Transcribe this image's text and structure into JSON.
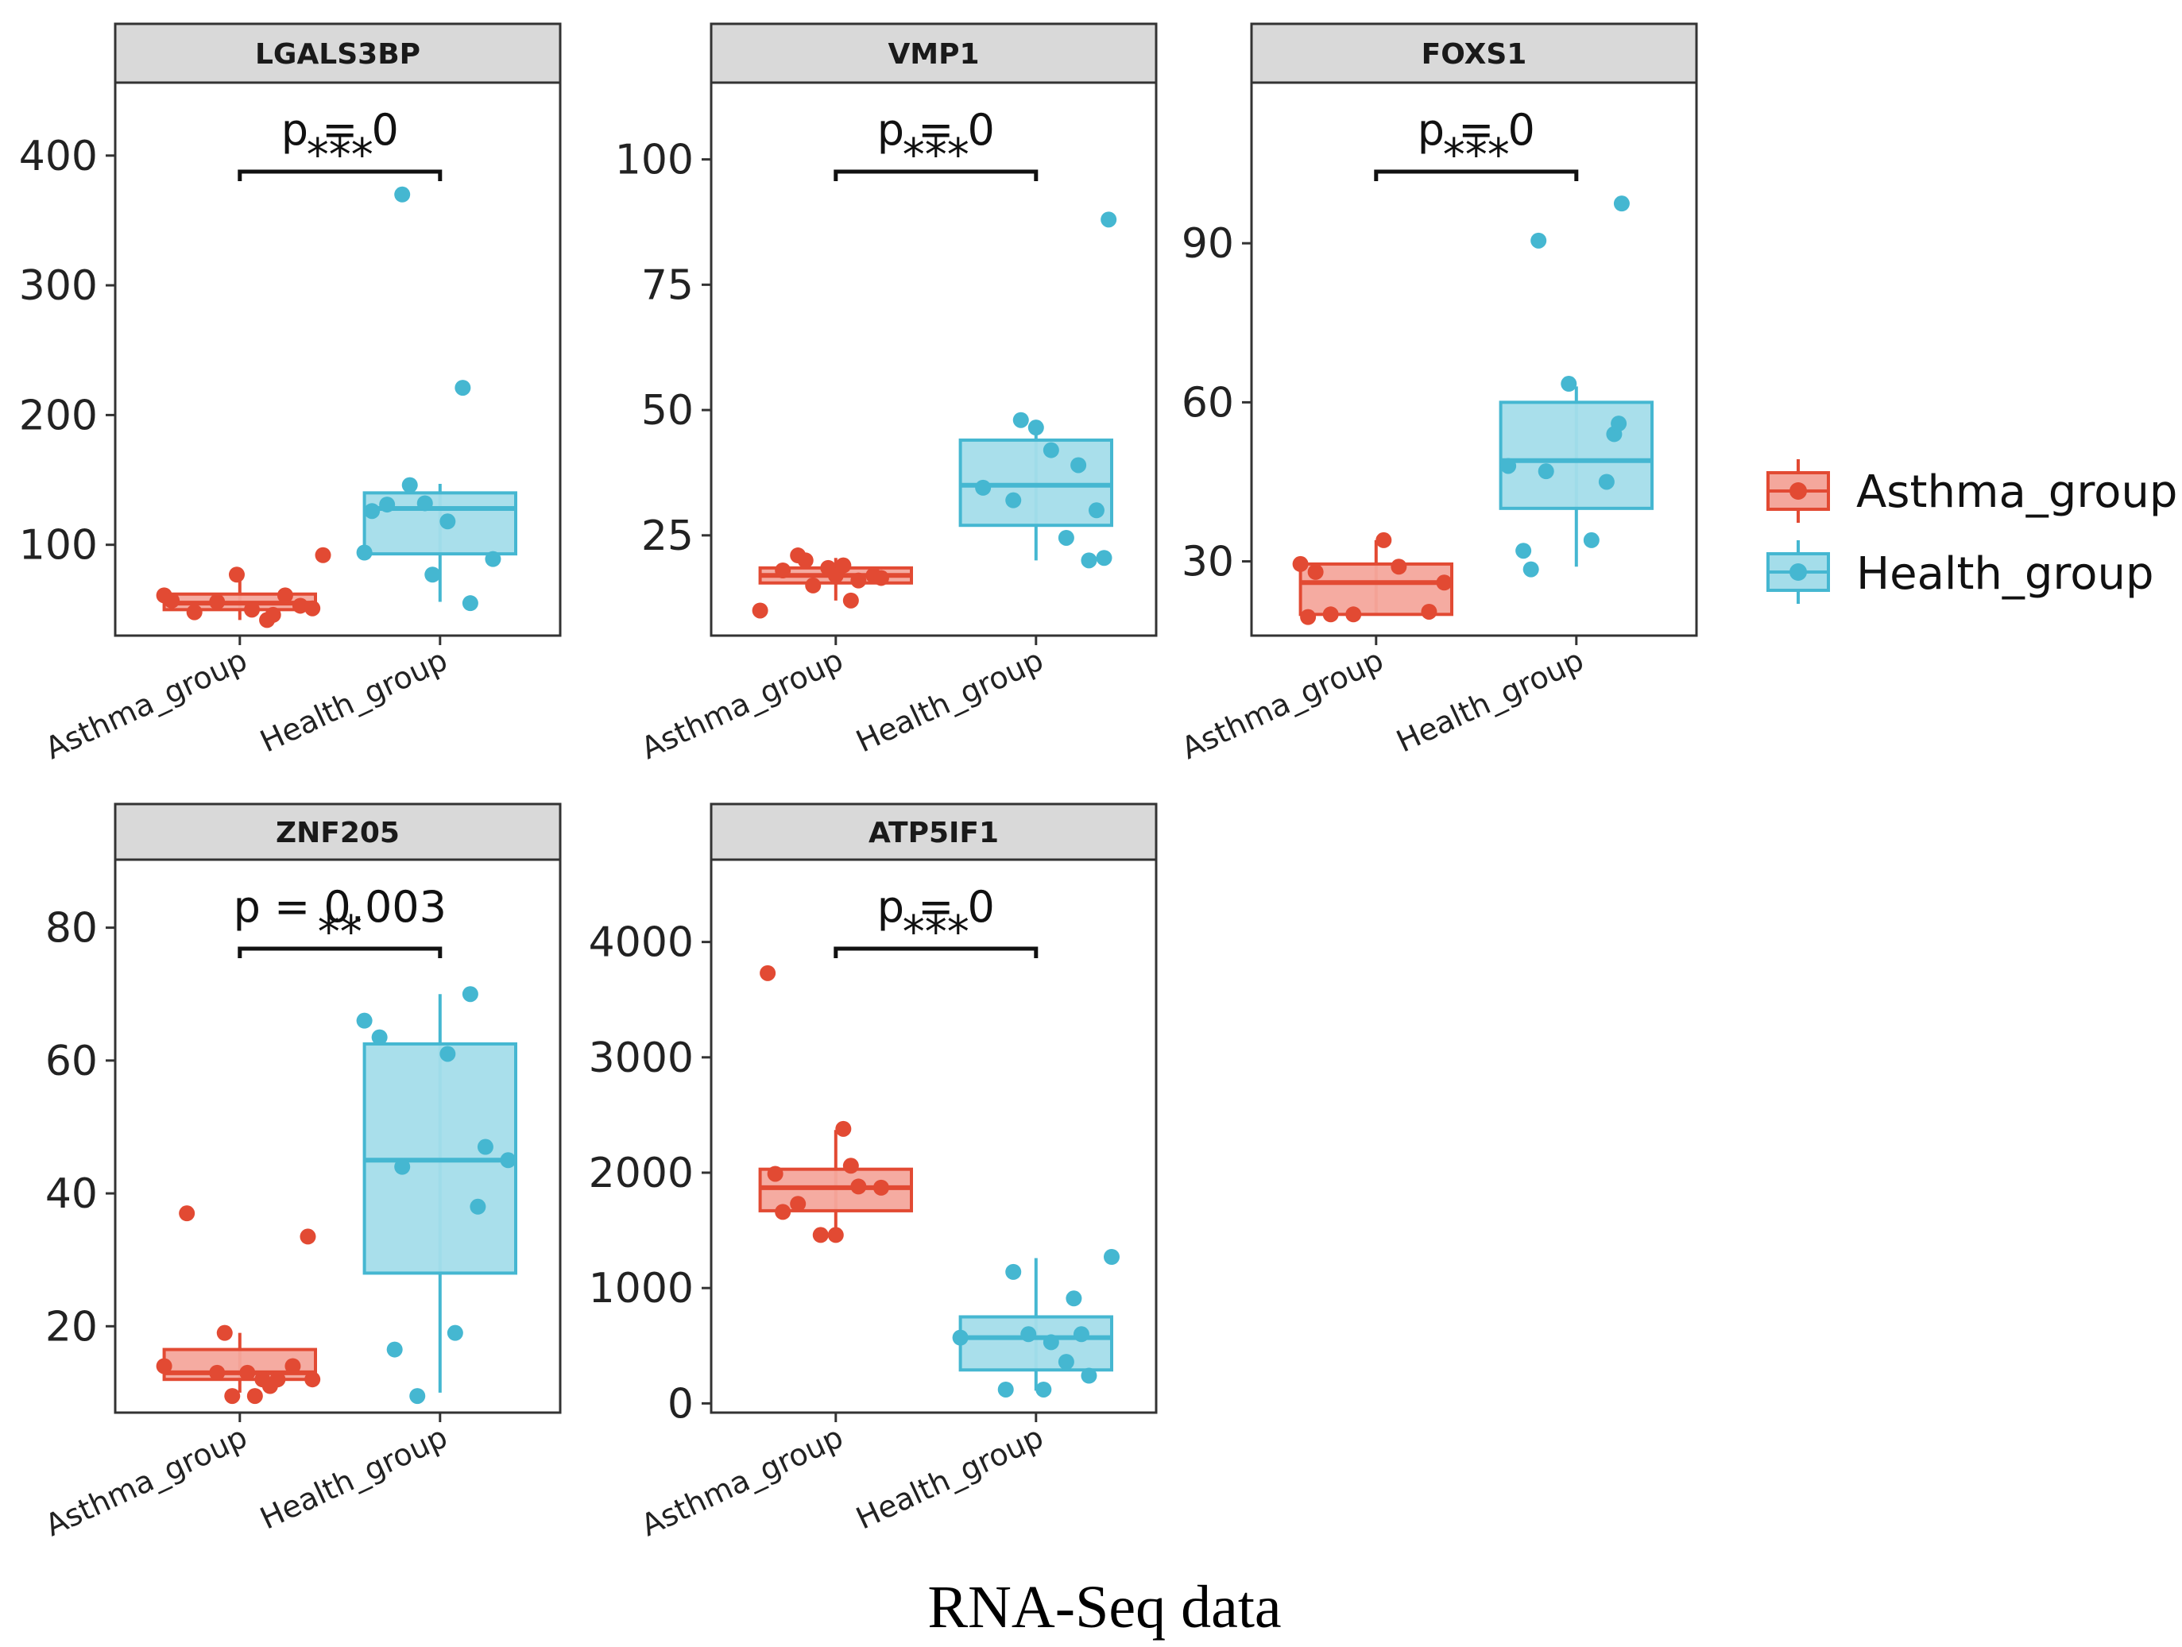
{
  "chart_data": {
    "type": "box",
    "caption": "RNA-Seq data",
    "colors": {
      "Asthma_group": {
        "stroke": "#E24A33",
        "fill": "#F4A79C"
      },
      "Health_group": {
        "stroke": "#45B7D1",
        "fill": "#A4DDEA"
      }
    },
    "legend": {
      "position": "right",
      "entries": [
        "Asthma_group",
        "Health_group"
      ]
    },
    "panels": [
      {
        "title": "LGALS3BP",
        "p_label": "p = 0",
        "stars": "***",
        "ylim": [
          30,
          455
        ],
        "yticks": [
          100,
          200,
          300,
          400
        ],
        "categories": [
          "Asthma_group",
          "Health_group"
        ],
        "groups": [
          {
            "name": "Asthma_group",
            "q1": 50,
            "median": 55,
            "q3": 62,
            "whisker_low": 42,
            "whisker_high": 78,
            "points": [
              [
                -0.5,
                61
              ],
              [
                -0.45,
                57
              ],
              [
                -0.3,
                48
              ],
              [
                -0.15,
                56
              ],
              [
                -0.02,
                77
              ],
              [
                0.08,
                50
              ],
              [
                0.18,
                42
              ],
              [
                0.22,
                46
              ],
              [
                0.3,
                61
              ],
              [
                0.4,
                53
              ],
              [
                0.48,
                51
              ],
              [
                0.55,
                92
              ]
            ]
          },
          {
            "name": "Health_group",
            "q1": 93,
            "median": 128,
            "q3": 140,
            "whisker_low": 56,
            "whisker_high": 147,
            "points": [
              [
                -0.5,
                94
              ],
              [
                -0.45,
                126
              ],
              [
                -0.35,
                131
              ],
              [
                -0.25,
                370
              ],
              [
                -0.2,
                146
              ],
              [
                -0.1,
                132
              ],
              [
                -0.05,
                77
              ],
              [
                0.05,
                118
              ],
              [
                0.15,
                221
              ],
              [
                0.2,
                55
              ],
              [
                0.35,
                89
              ]
            ]
          }
        ]
      },
      {
        "title": "VMP1",
        "p_label": "p = 0",
        "stars": "***",
        "ylim": [
          5,
          115
        ],
        "yticks": [
          25,
          50,
          75,
          100
        ],
        "categories": [
          "Asthma_group",
          "Health_group"
        ],
        "groups": [
          {
            "name": "Asthma_group",
            "q1": 15.5,
            "median": 17,
            "q3": 18.5,
            "whisker_low": 12,
            "whisker_high": 20.5,
            "points": [
              [
                -0.5,
                10
              ],
              [
                -0.35,
                18
              ],
              [
                -0.25,
                21
              ],
              [
                -0.2,
                20
              ],
              [
                -0.15,
                15
              ],
              [
                -0.05,
                18.5
              ],
              [
                0,
                17
              ],
              [
                0.05,
                19
              ],
              [
                0.1,
                12
              ],
              [
                0.15,
                16
              ],
              [
                0.25,
                17
              ],
              [
                0.3,
                16.5
              ]
            ]
          },
          {
            "name": "Health_group",
            "q1": 27,
            "median": 35,
            "q3": 44,
            "whisker_low": 20,
            "whisker_high": 48,
            "points": [
              [
                -0.35,
                34.5
              ],
              [
                -0.15,
                32
              ],
              [
                -0.1,
                48
              ],
              [
                0,
                46.5
              ],
              [
                0.1,
                42
              ],
              [
                0.2,
                24.5
              ],
              [
                0.28,
                39
              ],
              [
                0.35,
                20
              ],
              [
                0.4,
                30
              ],
              [
                0.45,
                20.5
              ],
              [
                0.48,
                88
              ]
            ]
          }
        ]
      },
      {
        "title": "FOXS1",
        "p_label": "p = 0",
        "stars": "***",
        "ylim": [
          16,
          120
        ],
        "yticks": [
          30,
          60,
          90
        ],
        "categories": [
          "Asthma_group",
          "Health_group"
        ],
        "groups": [
          {
            "name": "Asthma_group",
            "q1": 20,
            "median": 26,
            "q3": 29.5,
            "whisker_low": 20,
            "whisker_high": 34,
            "points": [
              [
                -0.5,
                29.5
              ],
              [
                -0.45,
                19.5
              ],
              [
                -0.4,
                28
              ],
              [
                -0.3,
                20
              ],
              [
                -0.15,
                20
              ],
              [
                0.05,
                34
              ],
              [
                0.15,
                29
              ],
              [
                0.35,
                20.5
              ],
              [
                0.45,
                26
              ]
            ]
          },
          {
            "name": "Health_group",
            "q1": 40,
            "median": 49,
            "q3": 60,
            "whisker_low": 29,
            "whisker_high": 63,
            "points": [
              [
                -0.45,
                48
              ],
              [
                -0.35,
                32
              ],
              [
                -0.3,
                28.5
              ],
              [
                -0.25,
                90.5
              ],
              [
                -0.2,
                47
              ],
              [
                -0.05,
                63.5
              ],
              [
                0.1,
                34
              ],
              [
                0.2,
                45
              ],
              [
                0.25,
                54
              ],
              [
                0.28,
                56
              ],
              [
                0.3,
                97.5
              ]
            ]
          }
        ]
      },
      {
        "title": "ZNF205",
        "p_label": "p = 0.003",
        "stars": "**",
        "ylim": [
          7,
          90
        ],
        "yticks": [
          20,
          40,
          60,
          80
        ],
        "categories": [
          "Asthma_group",
          "Health_group"
        ],
        "groups": [
          {
            "name": "Asthma_group",
            "q1": 12,
            "median": 13,
            "q3": 16.5,
            "whisker_low": 10,
            "whisker_high": 19,
            "points": [
              [
                -0.5,
                14
              ],
              [
                -0.35,
                37
              ],
              [
                -0.15,
                13
              ],
              [
                -0.1,
                19
              ],
              [
                -0.05,
                9.5
              ],
              [
                0.05,
                13
              ],
              [
                0.1,
                9.5
              ],
              [
                0.15,
                12
              ],
              [
                0.2,
                11
              ],
              [
                0.25,
                12
              ],
              [
                0.35,
                14
              ],
              [
                0.45,
                33.5
              ],
              [
                0.48,
                12
              ]
            ]
          },
          {
            "name": "Health_group",
            "q1": 28,
            "median": 45,
            "q3": 62.5,
            "whisker_low": 10,
            "whisker_high": 70,
            "points": [
              [
                -0.5,
                66
              ],
              [
                -0.4,
                63.5
              ],
              [
                -0.3,
                16.5
              ],
              [
                -0.25,
                44
              ],
              [
                -0.15,
                9.5
              ],
              [
                0.05,
                61
              ],
              [
                0.1,
                19
              ],
              [
                0.2,
                70
              ],
              [
                0.25,
                38
              ],
              [
                0.3,
                47
              ],
              [
                0.45,
                45
              ]
            ]
          }
        ]
      },
      {
        "title": "ATP5IF1",
        "p_label": "p = 0",
        "stars": "***",
        "ylim": [
          -80,
          4700
        ],
        "yticks": [
          0,
          1000,
          2000,
          3000,
          4000
        ],
        "categories": [
          "Asthma_group",
          "Health_group"
        ],
        "groups": [
          {
            "name": "Asthma_group",
            "q1": 1670,
            "median": 1870,
            "q3": 2030,
            "whisker_low": 1470,
            "whisker_high": 2370,
            "points": [
              [
                -0.45,
                3730
              ],
              [
                -0.4,
                1990
              ],
              [
                -0.35,
                1660
              ],
              [
                -0.25,
                1730
              ],
              [
                -0.1,
                1460
              ],
              [
                0,
                1460
              ],
              [
                0.05,
                2380
              ],
              [
                0.1,
                2060
              ],
              [
                0.15,
                1880
              ],
              [
                0.3,
                1870
              ]
            ]
          },
          {
            "name": "Health_group",
            "q1": 290,
            "median": 570,
            "q3": 750,
            "whisker_low": 110,
            "whisker_high": 1260,
            "points": [
              [
                -0.5,
                570
              ],
              [
                -0.2,
                120
              ],
              [
                -0.15,
                1140
              ],
              [
                -0.05,
                600
              ],
              [
                0.05,
                120
              ],
              [
                0.1,
                530
              ],
              [
                0.2,
                360
              ],
              [
                0.25,
                910
              ],
              [
                0.3,
                600
              ],
              [
                0.35,
                240
              ],
              [
                0.5,
                1270
              ]
            ]
          }
        ]
      }
    ]
  }
}
